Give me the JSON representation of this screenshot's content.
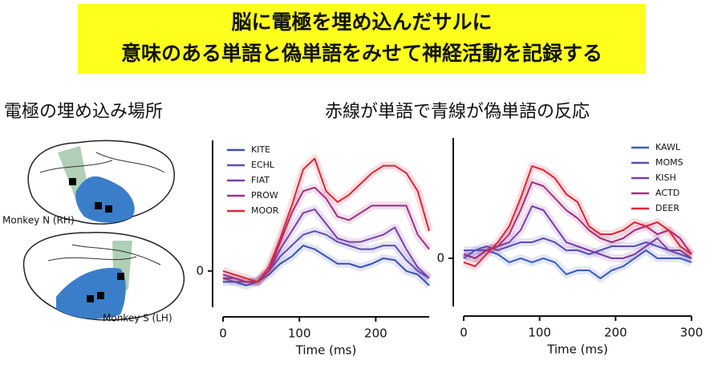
{
  "slide": {
    "title": [
      "脳に電極を埋め込んだサルに",
      "意味のある単語と偽単語をみせて神経活動を記録する"
    ],
    "left_heading": "電極の埋め込み場所",
    "right_heading": "赤線が単語で青線が偽単語の反応",
    "monkeys": [
      "Monkey N (RH)",
      "Monkey S (LH)"
    ]
  },
  "chart_data": [
    {
      "type": "line",
      "xlabel": "Time (ms)",
      "xlim": [
        0,
        270
      ],
      "xticks": [
        0,
        100,
        200
      ],
      "ylim": [
        -1,
        3.6
      ],
      "yticks": [
        0
      ],
      "legend": "upper left",
      "x": [
        0,
        15,
        30,
        45,
        60,
        75,
        90,
        105,
        120,
        135,
        150,
        165,
        180,
        195,
        210,
        225,
        240,
        255,
        270
      ],
      "series": [
        {
          "name": "KITE",
          "color": "#3b4fb0",
          "values": [
            -0.3,
            -0.3,
            -0.4,
            -0.3,
            -0.1,
            0.2,
            0.4,
            0.7,
            0.6,
            0.4,
            0.2,
            0.2,
            0.1,
            0.2,
            0.35,
            0.3,
            0,
            -0.1,
            -0.4
          ]
        },
        {
          "name": "ECHL",
          "color": "#5a4fb5",
          "values": [
            -0.2,
            -0.3,
            -0.3,
            -0.3,
            0,
            0.4,
            0.7,
            1.0,
            1.1,
            1.0,
            0.8,
            0.7,
            0.6,
            0.6,
            0.7,
            0.7,
            0.3,
            0,
            -0.2
          ]
        },
        {
          "name": "FIAT",
          "color": "#7a3fa8",
          "values": [
            -0.1,
            -0.2,
            -0.3,
            -0.3,
            0,
            0.6,
            1.1,
            1.6,
            1.7,
            1.3,
            0.9,
            0.8,
            0.8,
            0.9,
            1.0,
            1.2,
            0.6,
            0.1,
            -0.2
          ]
        },
        {
          "name": "PROW",
          "color": "#a03080",
          "values": [
            -0.2,
            -0.2,
            -0.3,
            -0.3,
            0,
            0.8,
            1.6,
            2.2,
            2.3,
            2.0,
            1.5,
            1.4,
            1.6,
            1.8,
            1.8,
            1.8,
            1.8,
            1.0,
            0.6
          ]
        },
        {
          "name": "MOOR",
          "color": "#d8283a",
          "values": [
            0,
            -0.1,
            -0.2,
            -0.3,
            0.1,
            0.9,
            1.8,
            2.8,
            3.1,
            2.2,
            1.9,
            2.1,
            2.4,
            2.7,
            2.9,
            2.9,
            2.7,
            2.2,
            1.1
          ]
        }
      ]
    },
    {
      "type": "line",
      "xlabel": "Time (ms)",
      "xlim": [
        0,
        300
      ],
      "xticks": [
        0,
        100,
        200,
        300
      ],
      "ylim": [
        -1.2,
        3.0
      ],
      "yticks": [
        0
      ],
      "legend": "upper right",
      "x": [
        0,
        15,
        30,
        45,
        60,
        75,
        90,
        105,
        120,
        135,
        150,
        165,
        180,
        195,
        210,
        225,
        240,
        255,
        270,
        285,
        300
      ],
      "series": [
        {
          "name": "KAWL",
          "color": "#3e5cc0",
          "values": [
            0,
            0.2,
            0.2,
            0.1,
            -0.1,
            0,
            -0.1,
            0,
            -0.1,
            -0.4,
            -0.3,
            -0.3,
            -0.5,
            -0.3,
            -0.2,
            0,
            0.2,
            0,
            0,
            0,
            -0.1
          ]
        },
        {
          "name": "MOMS",
          "color": "#5a4fb5",
          "values": [
            0.2,
            0.2,
            0.3,
            0.2,
            0.3,
            0.4,
            0.4,
            0.5,
            0.4,
            0.2,
            0.2,
            0.1,
            0.2,
            0.3,
            0.3,
            0.3,
            0.4,
            0.3,
            0.2,
            0.1,
            0
          ]
        },
        {
          "name": "KISH",
          "color": "#7a3fa8",
          "values": [
            0.1,
            0,
            0.2,
            0.3,
            0.4,
            0.7,
            1.3,
            1.2,
            0.8,
            0.4,
            0.3,
            0.2,
            0.1,
            0,
            0,
            0.1,
            0.3,
            0.5,
            0.2,
            0.2,
            0
          ]
        },
        {
          "name": "ACTD",
          "color": "#a03080",
          "values": [
            0.1,
            0,
            0.2,
            0.3,
            0.6,
            1.2,
            1.9,
            1.8,
            1.5,
            1.2,
            1.0,
            0.7,
            0.5,
            0.4,
            0.5,
            0.7,
            0.8,
            0.6,
            0.7,
            0.5,
            0.1
          ]
        },
        {
          "name": "DEER",
          "color": "#d8283a",
          "values": [
            -0.1,
            -0.2,
            0.1,
            0.4,
            0.8,
            1.5,
            2.3,
            2.2,
            2.0,
            1.6,
            1.4,
            0.8,
            0.6,
            0.6,
            0.7,
            0.9,
            0.8,
            0.9,
            0.7,
            0.3,
            0.1
          ]
        }
      ]
    }
  ]
}
